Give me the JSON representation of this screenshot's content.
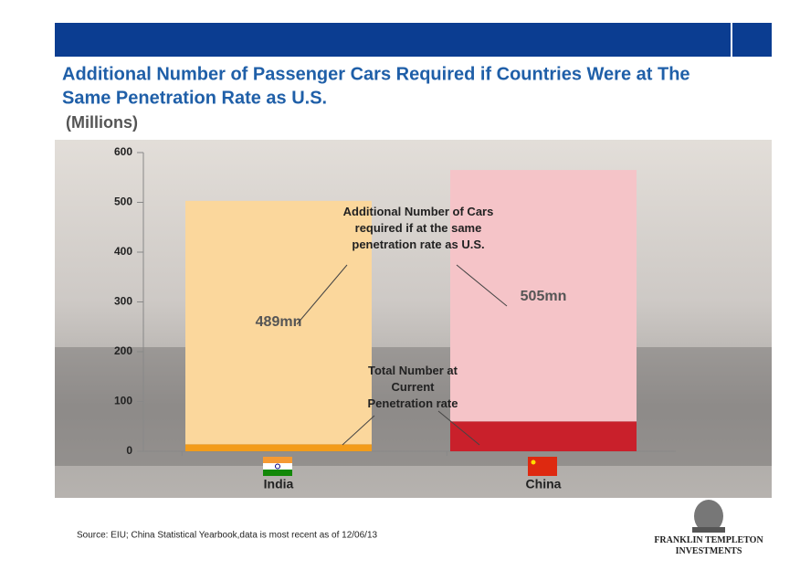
{
  "chart_data": {
    "type": "bar",
    "stacked": true,
    "title": "Additional  Number of Passenger Cars Required if Countries Were at The Same Penetration Rate as U.S.",
    "subtitle": "(Millions)",
    "categories": [
      "India",
      "China"
    ],
    "series": [
      {
        "name": "Total Number at Current Penetration rate",
        "colors": [
          "#f39c1a",
          "#c9202b"
        ],
        "values": [
          14,
          60
        ]
      },
      {
        "name": "Additional Number of Cars required if at the same penetration rate as U.S.",
        "colors": [
          "#fbd79c",
          "#f5c4c8"
        ],
        "values": [
          489,
          505
        ],
        "value_labels": [
          "489mn",
          "505mn"
        ]
      }
    ],
    "ylim": [
      0,
      600
    ],
    "yticks": [
      0,
      100,
      200,
      300,
      400,
      500,
      600
    ],
    "grid": false,
    "source": "Source: EIU; China Statistical Yearbook,data is most recent as of 12/06/13",
    "logo": "FRANKLIN TEMPLETON INVESTMENTS"
  }
}
